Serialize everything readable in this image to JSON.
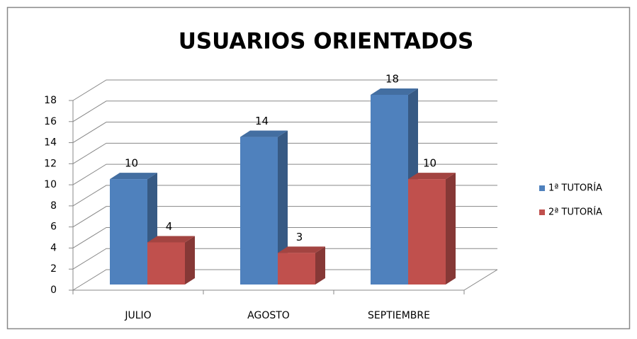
{
  "chart_data": {
    "type": "bar3d",
    "title": "USUARIOS ORIENTADOS",
    "categories": [
      "JULIO",
      "AGOSTO",
      "SEPTIEMBRE"
    ],
    "series": [
      {
        "name": "1ª TUTORÍA",
        "color": "#4F81BD",
        "values": [
          10,
          14,
          18
        ]
      },
      {
        "name": "2ª TUTORÍA",
        "color": "#C0504D",
        "values": [
          4,
          3,
          10
        ]
      }
    ],
    "ylim": [
      0,
      18
    ],
    "yticks": [
      0,
      2,
      4,
      6,
      8,
      10,
      12,
      14,
      16,
      18
    ],
    "grid": true,
    "legend": "right"
  }
}
